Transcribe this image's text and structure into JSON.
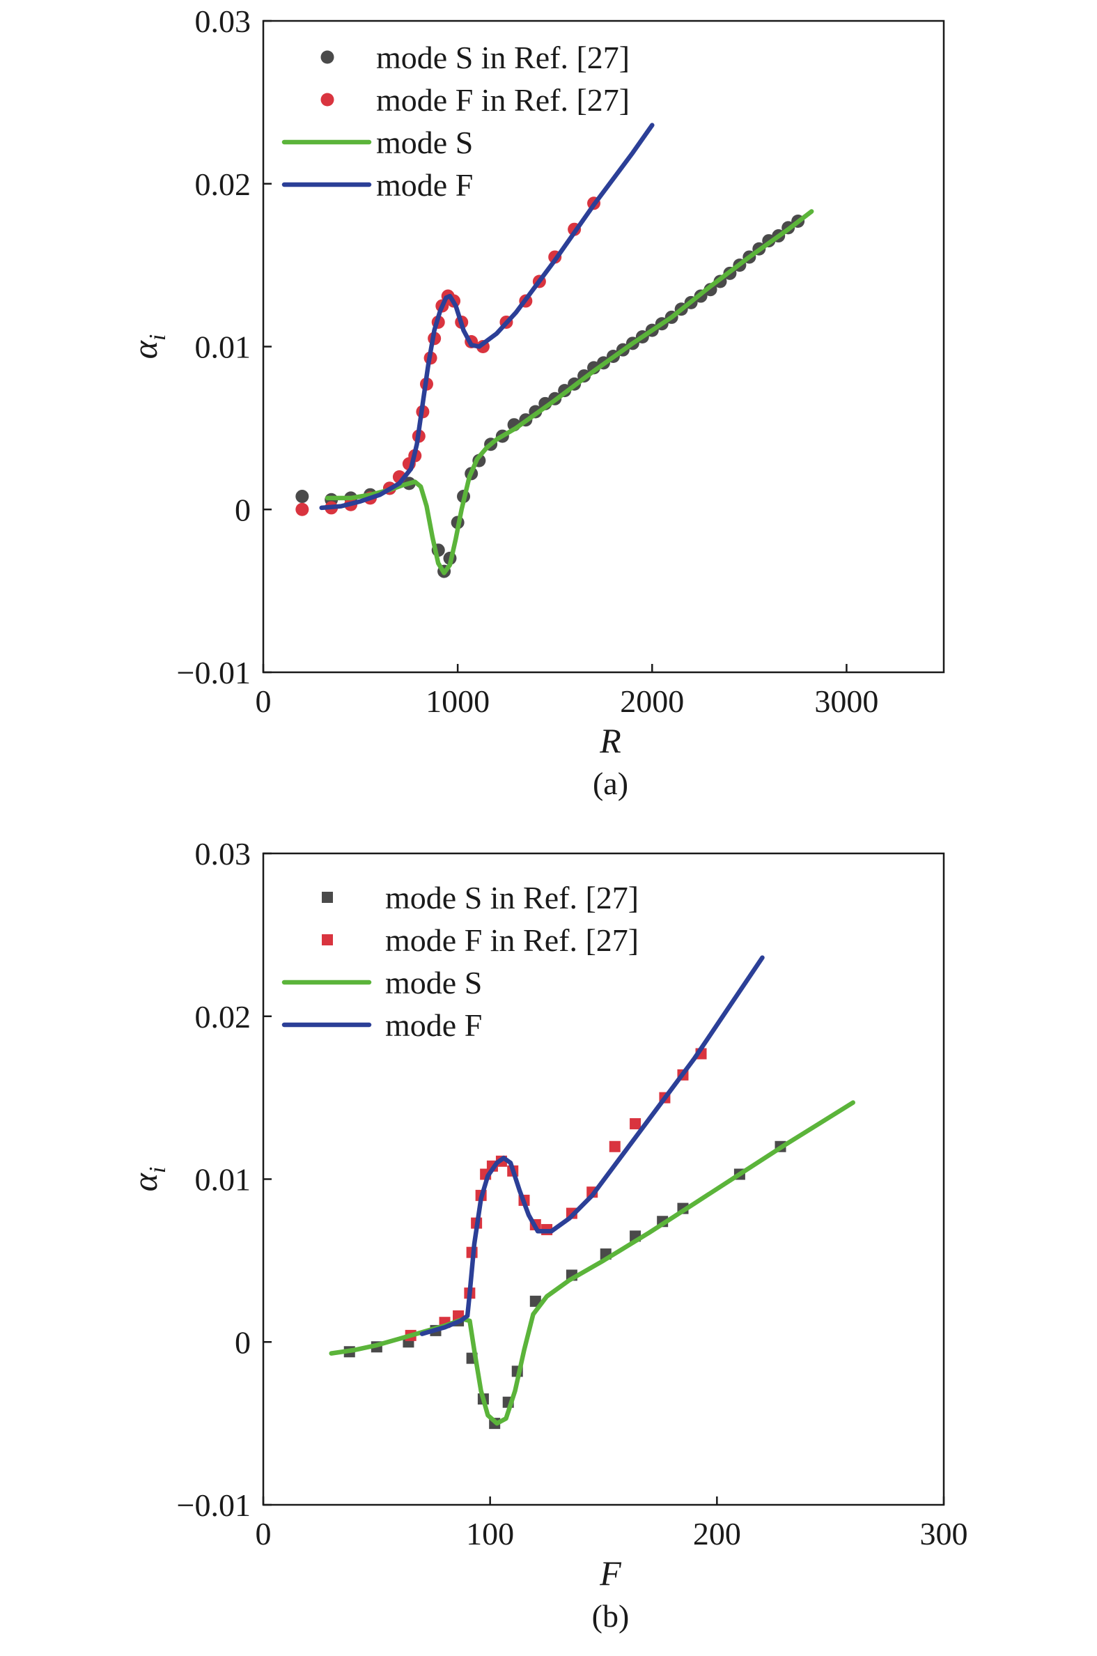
{
  "chart_data": [
    {
      "type": "line",
      "caption": "(a)",
      "xlabel": "R",
      "ylabel": "α",
      "ylabel_sub": "i",
      "xlim": [
        0,
        3500
      ],
      "ylim": [
        -0.01,
        0.03
      ],
      "xticks": [
        0,
        1000,
        2000,
        3000
      ],
      "xtick_labels": [
        "0",
        "1000",
        "2000",
        "3000"
      ],
      "yticks": [
        -0.01,
        0,
        0.01,
        0.02,
        0.03
      ],
      "ytick_labels": [
        "−0.01",
        "0",
        "0.01",
        "0.02",
        "0.03"
      ],
      "marker_shape": "circle",
      "legend": {
        "position": "top-left",
        "entries": [
          "mode S in Ref. [27]",
          "mode F in Ref. [27]",
          "mode S",
          "mode F"
        ]
      },
      "scatter_series": [
        {
          "name": "mode S in Ref. [27]",
          "color": "#4a4a4a",
          "points": [
            [
              200,
              0.0008
            ],
            [
              350,
              0.0006
            ],
            [
              450,
              0.0007
            ],
            [
              550,
              0.0009
            ],
            [
              650,
              0.0013
            ],
            [
              750,
              0.0016
            ],
            [
              900,
              -0.0025
            ],
            [
              930,
              -0.0038
            ],
            [
              960,
              -0.003
            ],
            [
              1000,
              -0.0008
            ],
            [
              1030,
              0.0008
            ],
            [
              1070,
              0.0022
            ],
            [
              1110,
              0.003
            ],
            [
              1170,
              0.004
            ],
            [
              1230,
              0.0045
            ],
            [
              1290,
              0.0052
            ],
            [
              1350,
              0.0055
            ],
            [
              1400,
              0.006
            ],
            [
              1450,
              0.0065
            ],
            [
              1500,
              0.0068
            ],
            [
              1550,
              0.0073
            ],
            [
              1600,
              0.0077
            ],
            [
              1650,
              0.0082
            ],
            [
              1700,
              0.0087
            ],
            [
              1750,
              0.009
            ],
            [
              1800,
              0.0094
            ],
            [
              1850,
              0.0098
            ],
            [
              1900,
              0.0102
            ],
            [
              1950,
              0.0106
            ],
            [
              2000,
              0.011
            ],
            [
              2050,
              0.0114
            ],
            [
              2100,
              0.0118
            ],
            [
              2150,
              0.0123
            ],
            [
              2200,
              0.0127
            ],
            [
              2250,
              0.0131
            ],
            [
              2300,
              0.0135
            ],
            [
              2350,
              0.014
            ],
            [
              2400,
              0.0145
            ],
            [
              2450,
              0.015
            ],
            [
              2500,
              0.0155
            ],
            [
              2550,
              0.016
            ],
            [
              2600,
              0.0165
            ],
            [
              2650,
              0.0168
            ],
            [
              2700,
              0.0173
            ],
            [
              2750,
              0.0177
            ]
          ]
        },
        {
          "name": "mode F in Ref. [27]",
          "color": "#d9343f",
          "points": [
            [
              200,
              0.0
            ],
            [
              350,
              0.0001
            ],
            [
              450,
              0.0003
            ],
            [
              550,
              0.0007
            ],
            [
              650,
              0.0013
            ],
            [
              700,
              0.002
            ],
            [
              750,
              0.0028
            ],
            [
              780,
              0.0033
            ],
            [
              800,
              0.0045
            ],
            [
              820,
              0.006
            ],
            [
              840,
              0.0077
            ],
            [
              860,
              0.0093
            ],
            [
              880,
              0.0105
            ],
            [
              900,
              0.0115
            ],
            [
              920,
              0.0125
            ],
            [
              950,
              0.0131
            ],
            [
              980,
              0.0128
            ],
            [
              1020,
              0.0115
            ],
            [
              1070,
              0.0103
            ],
            [
              1130,
              0.01
            ],
            [
              1250,
              0.0115
            ],
            [
              1350,
              0.0128
            ],
            [
              1420,
              0.014
            ],
            [
              1500,
              0.0155
            ],
            [
              1600,
              0.0172
            ],
            [
              1700,
              0.0188
            ]
          ]
        }
      ],
      "line_series": [
        {
          "name": "mode S",
          "color": "#5bb43a",
          "points": [
            [
              330,
              0.0007
            ],
            [
              450,
              0.0007
            ],
            [
              550,
              0.0009
            ],
            [
              650,
              0.0012
            ],
            [
              720,
              0.0015
            ],
            [
              780,
              0.0017
            ],
            [
              810,
              0.0014
            ],
            [
              840,
              0.0002
            ],
            [
              870,
              -0.0017
            ],
            [
              900,
              -0.0033
            ],
            [
              930,
              -0.0039
            ],
            [
              960,
              -0.0034
            ],
            [
              990,
              -0.0018
            ],
            [
              1020,
              0.0
            ],
            [
              1060,
              0.002
            ],
            [
              1100,
              0.0031
            ],
            [
              1150,
              0.0038
            ],
            [
              1200,
              0.0043
            ],
            [
              1300,
              0.005
            ],
            [
              1500,
              0.0067
            ],
            [
              1700,
              0.0085
            ],
            [
              1900,
              0.0102
            ],
            [
              2100,
              0.0118
            ],
            [
              2300,
              0.0137
            ],
            [
              2500,
              0.0155
            ],
            [
              2700,
              0.0172
            ],
            [
              2820,
              0.0183
            ]
          ]
        },
        {
          "name": "mode F",
          "color": "#2b3f97",
          "points": [
            [
              300,
              0.0001
            ],
            [
              400,
              0.0002
            ],
            [
              500,
              0.0005
            ],
            [
              600,
              0.0009
            ],
            [
              700,
              0.0016
            ],
            [
              760,
              0.0025
            ],
            [
              790,
              0.004
            ],
            [
              820,
              0.0065
            ],
            [
              850,
              0.009
            ],
            [
              880,
              0.011
            ],
            [
              910,
              0.0122
            ],
            [
              940,
              0.013
            ],
            [
              960,
              0.0131
            ],
            [
              990,
              0.0125
            ],
            [
              1030,
              0.011
            ],
            [
              1070,
              0.0101
            ],
            [
              1110,
              0.01
            ],
            [
              1200,
              0.0108
            ],
            [
              1300,
              0.0121
            ],
            [
              1400,
              0.0137
            ],
            [
              1500,
              0.0153
            ],
            [
              1600,
              0.017
            ],
            [
              1700,
              0.0187
            ],
            [
              1800,
              0.0203
            ],
            [
              1900,
              0.0219
            ],
            [
              2000,
              0.0236
            ]
          ]
        }
      ]
    },
    {
      "type": "line",
      "caption": "(b)",
      "xlabel": "F",
      "ylabel": "α",
      "ylabel_sub": "i",
      "xlim": [
        0,
        300
      ],
      "ylim": [
        -0.01,
        0.03
      ],
      "xticks": [
        0,
        100,
        200,
        300
      ],
      "xtick_labels": [
        "0",
        "100",
        "200",
        "300"
      ],
      "yticks": [
        -0.01,
        0,
        0.01,
        0.02,
        0.03
      ],
      "ytick_labels": [
        "−0.01",
        "0",
        "0.01",
        "0.02",
        "0.03"
      ],
      "marker_shape": "square",
      "legend": {
        "position": "top-left",
        "entries": [
          "mode S in Ref. [27]",
          "mode F in Ref. [27]",
          "mode S",
          "mode F"
        ]
      },
      "scatter_series": [
        {
          "name": "mode S in Ref. [27]",
          "color": "#4a4a4a",
          "points": [
            [
              38,
              -0.0006
            ],
            [
              50,
              -0.0003
            ],
            [
              64,
              0.0
            ],
            [
              76,
              0.0007
            ],
            [
              86,
              0.0013
            ],
            [
              92,
              -0.001
            ],
            [
              97,
              -0.0035
            ],
            [
              102,
              -0.005
            ],
            [
              108,
              -0.0037
            ],
            [
              112,
              -0.0018
            ],
            [
              120,
              0.0025
            ],
            [
              136,
              0.0041
            ],
            [
              151,
              0.0054
            ],
            [
              164,
              0.0065
            ],
            [
              176,
              0.0074
            ],
            [
              185,
              0.0082
            ],
            [
              210,
              0.0103
            ],
            [
              228,
              0.012
            ]
          ]
        },
        {
          "name": "mode F in Ref. [27]",
          "color": "#d9343f",
          "points": [
            [
              65,
              0.0004
            ],
            [
              80,
              0.0012
            ],
            [
              86,
              0.0016
            ],
            [
              91,
              0.003
            ],
            [
              92,
              0.0055
            ],
            [
              94,
              0.0073
            ],
            [
              96,
              0.009
            ],
            [
              98,
              0.0103
            ],
            [
              101,
              0.0108
            ],
            [
              105,
              0.0111
            ],
            [
              110,
              0.0105
            ],
            [
              115,
              0.0087
            ],
            [
              120,
              0.0072
            ],
            [
              125,
              0.0069
            ],
            [
              136,
              0.0079
            ],
            [
              145,
              0.0092
            ],
            [
              155,
              0.012
            ],
            [
              164,
              0.0134
            ],
            [
              177,
              0.015
            ],
            [
              185,
              0.0164
            ],
            [
              193,
              0.0177
            ]
          ]
        }
      ],
      "line_series": [
        {
          "name": "mode S",
          "color": "#5bb43a",
          "points": [
            [
              30,
              -0.0007
            ],
            [
              40,
              -0.0005
            ],
            [
              50,
              -0.0002
            ],
            [
              60,
              0.0002
            ],
            [
              70,
              0.0006
            ],
            [
              80,
              0.001
            ],
            [
              88,
              0.0014
            ],
            [
              91,
              0.0013
            ],
            [
              93,
              -0.0005
            ],
            [
              96,
              -0.003
            ],
            [
              99,
              -0.0045
            ],
            [
              103,
              -0.005
            ],
            [
              107,
              -0.0047
            ],
            [
              111,
              -0.003
            ],
            [
              115,
              -0.0005
            ],
            [
              119,
              0.0017
            ],
            [
              125,
              0.0028
            ],
            [
              135,
              0.0038
            ],
            [
              150,
              0.005
            ],
            [
              170,
              0.0067
            ],
            [
              190,
              0.0085
            ],
            [
              210,
              0.0103
            ],
            [
              230,
              0.0121
            ],
            [
              245,
              0.0134
            ],
            [
              260,
              0.0147
            ]
          ]
        },
        {
          "name": "mode F",
          "color": "#2b3f97",
          "points": [
            [
              70,
              0.0005
            ],
            [
              80,
              0.0009
            ],
            [
              87,
              0.0013
            ],
            [
              90,
              0.0016
            ],
            [
              91,
              0.003
            ],
            [
              93,
              0.006
            ],
            [
              96,
              0.0088
            ],
            [
              99,
              0.0102
            ],
            [
              103,
              0.011
            ],
            [
              106,
              0.0113
            ],
            [
              109,
              0.011
            ],
            [
              113,
              0.0093
            ],
            [
              117,
              0.0078
            ],
            [
              121,
              0.0068
            ],
            [
              127,
              0.0068
            ],
            [
              135,
              0.0076
            ],
            [
              145,
              0.009
            ],
            [
              160,
              0.0118
            ],
            [
              175,
              0.0146
            ],
            [
              190,
              0.0174
            ],
            [
              205,
              0.0205
            ],
            [
              220,
              0.0236
            ]
          ]
        }
      ]
    }
  ]
}
